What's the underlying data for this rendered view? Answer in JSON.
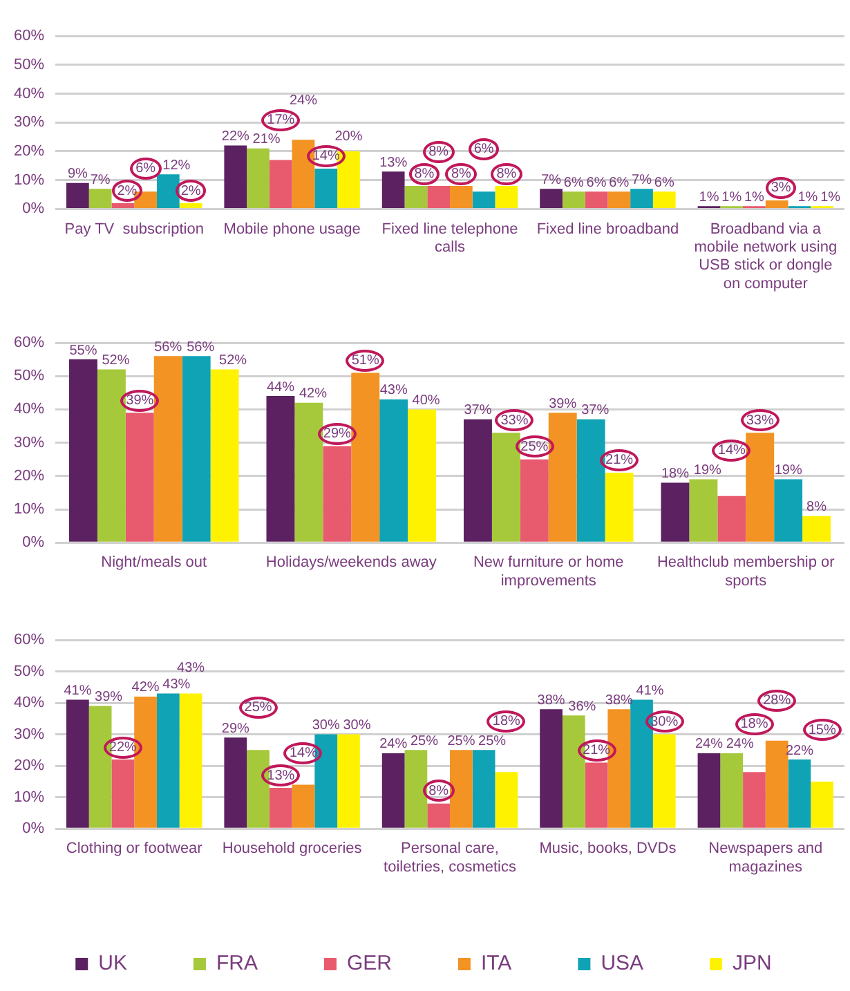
{
  "chart_data": [
    {
      "type": "bar",
      "categories": [
        "Pay TV  subscription",
        "Mobile phone usage",
        "Fixed line telephone calls",
        "Fixed line broadband",
        "Broadband via a mobile network using USB stick or dongle on computer"
      ],
      "series": [
        {
          "color": "#5c2161",
          "values": [
            9,
            22,
            13,
            7,
            1
          ],
          "value_labels": [
            "9%",
            "22%",
            "13%",
            "7%",
            "1%"
          ]
        },
        {
          "color": "#a6c93b",
          "values": [
            7,
            21,
            8,
            6,
            1
          ],
          "value_labels": [
            "7%",
            "21%",
            "8%",
            "6%",
            "1%"
          ]
        },
        {
          "color": "#e85a6e",
          "values": [
            2,
            17,
            8,
            6,
            1
          ],
          "value_labels": [
            "2%",
            "17%",
            "8%",
            "6%",
            "1%"
          ]
        },
        {
          "color": "#f39323",
          "values": [
            6,
            24,
            8,
            6,
            3
          ],
          "value_labels": [
            "6%",
            "24%",
            "8%",
            "6%",
            "3%"
          ]
        },
        {
          "color": "#0fa3b5",
          "values": [
            12,
            14,
            6,
            7,
            1
          ],
          "value_labels": [
            "12%",
            "14%",
            "6%",
            "7%",
            "1%"
          ]
        },
        {
          "color": "#fff200",
          "values": [
            2,
            20,
            8,
            6,
            1
          ],
          "value_labels": [
            "2%",
            "20%",
            "8%",
            "6%",
            "1%"
          ]
        }
      ],
      "ylim": [
        0,
        60
      ],
      "yticks": [
        {
          "value": 0,
          "label": "0%"
        },
        {
          "value": 10,
          "label": "10%"
        },
        {
          "value": 20,
          "label": "20%"
        },
        {
          "value": 30,
          "label": "30%"
        },
        {
          "value": 40,
          "label": "40%"
        },
        {
          "value": 50,
          "label": "50%"
        },
        {
          "value": 60,
          "label": "60%"
        }
      ],
      "grid": "y",
      "legend": false
    },
    {
      "type": "bar",
      "categories": [
        "Night/meals out",
        "Holidays/weekends away",
        "New furniture or home improvements",
        "Healthclub membership or sports"
      ],
      "series": [
        {
          "color": "#5c2161",
          "values": [
            55,
            44,
            37,
            18
          ],
          "value_labels": [
            "55%",
            "44%",
            "37%",
            "18%"
          ]
        },
        {
          "color": "#a6c93b",
          "values": [
            52,
            42,
            33,
            19
          ],
          "value_labels": [
            "52%",
            "42%",
            "33%",
            "19%"
          ]
        },
        {
          "color": "#e85a6e",
          "values": [
            39,
            29,
            25,
            14
          ],
          "value_labels": [
            "39%",
            "29%",
            "25%",
            "14%"
          ]
        },
        {
          "color": "#f39323",
          "values": [
            56,
            51,
            39,
            33
          ],
          "value_labels": [
            "56%",
            "51%",
            "39%",
            "33%"
          ]
        },
        {
          "color": "#0fa3b5",
          "values": [
            56,
            43,
            37,
            19
          ],
          "value_labels": [
            "56%",
            "43%",
            "37%",
            "19%"
          ]
        },
        {
          "color": "#fff200",
          "values": [
            52,
            40,
            21,
            8
          ],
          "value_labels": [
            "52%",
            "40%",
            "21%",
            "8%"
          ]
        }
      ],
      "ylim": [
        0,
        60
      ],
      "yticks": [
        {
          "value": 0,
          "label": "0%"
        },
        {
          "value": 10,
          "label": "10%"
        },
        {
          "value": 20,
          "label": "20%"
        },
        {
          "value": 30,
          "label": "30%"
        },
        {
          "value": 40,
          "label": "40%"
        },
        {
          "value": 50,
          "label": "50%"
        },
        {
          "value": 60,
          "label": "60%"
        }
      ],
      "grid": "y",
      "legend": false
    },
    {
      "type": "bar",
      "categories": [
        "Clothing or footwear",
        "Household groceries",
        "Personal care, toiletries, cosmetics",
        "Music, books, DVDs",
        "Newspapers and magazines"
      ],
      "series": [
        {
          "name": "UK",
          "color": "#5c2161",
          "values": [
            41,
            29,
            24,
            38,
            24
          ],
          "value_labels": [
            "41%",
            "29%",
            "24%",
            "38%",
            "24%"
          ]
        },
        {
          "name": "FRA",
          "color": "#a6c93b",
          "values": [
            39,
            25,
            25,
            36,
            24
          ],
          "value_labels": [
            "39%",
            "25%",
            "25%",
            "36%",
            "24%"
          ]
        },
        {
          "name": "GER",
          "color": "#e85a6e",
          "values": [
            22,
            13,
            8,
            21,
            18
          ],
          "value_labels": [
            "22%",
            "13%",
            "8%",
            "21%",
            "18%"
          ]
        },
        {
          "name": "ITA",
          "color": "#f39323",
          "values": [
            42,
            14,
            25,
            38,
            28
          ],
          "value_labels": [
            "42%",
            "14%",
            "25%",
            "38%",
            "28%"
          ]
        },
        {
          "name": "USA",
          "color": "#0fa3b5",
          "values": [
            43,
            30,
            25,
            41,
            22
          ],
          "value_labels": [
            "43%",
            "30%",
            "25%",
            "41%",
            "22%"
          ]
        },
        {
          "name": "JPN",
          "color": "#fff200",
          "values": [
            43,
            30,
            18,
            30,
            15
          ],
          "value_labels": [
            "43%",
            "30%",
            "18%",
            "30%",
            "15%"
          ]
        }
      ],
      "ylim": [
        0,
        60
      ],
      "yticks": [
        {
          "value": 0,
          "label": "0%"
        },
        {
          "value": 10,
          "label": "10%"
        },
        {
          "value": 20,
          "label": "20%"
        },
        {
          "value": 30,
          "label": "30%"
        },
        {
          "value": 40,
          "label": "40%"
        },
        {
          "value": 50,
          "label": "50%"
        },
        {
          "value": 60,
          "label": "60%"
        }
      ],
      "grid": "y",
      "legend": "bottom"
    }
  ]
}
